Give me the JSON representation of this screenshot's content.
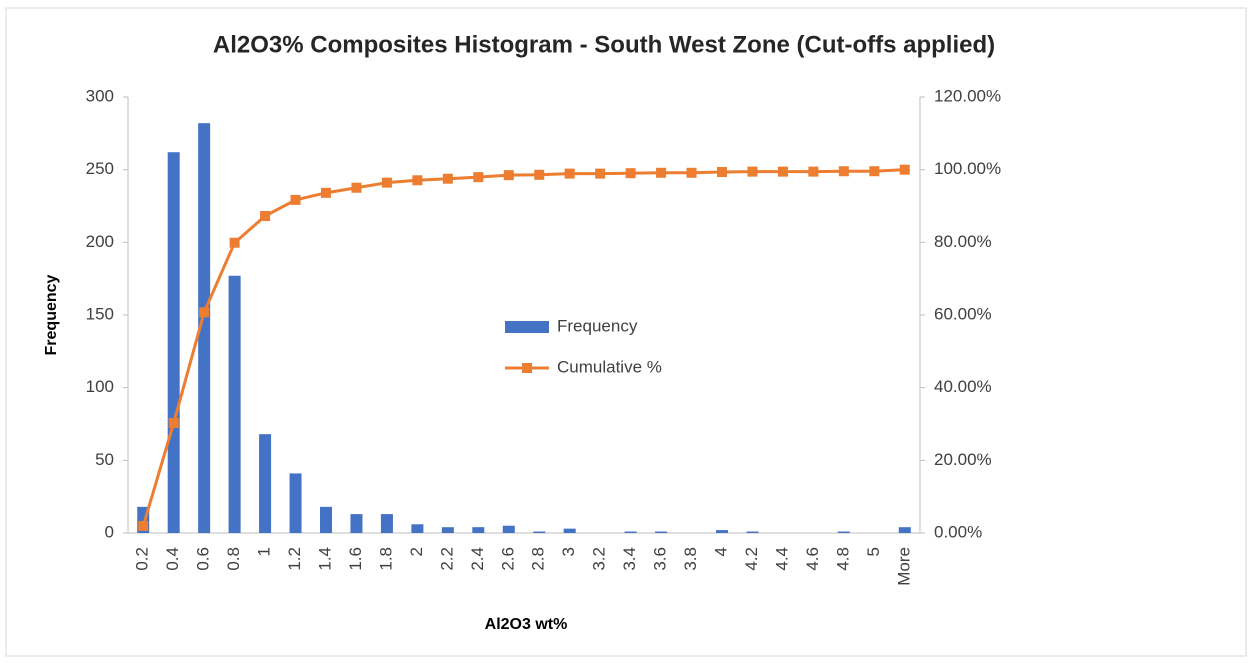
{
  "chart_data": {
    "type": "bar",
    "title": "Al2O3% Composites Histogram - South West Zone (Cut-offs applied)",
    "x_label": "Al2O3 wt%",
    "y_label": "Frequency",
    "categories": [
      "0.2",
      "0.4",
      "0.6",
      "0.8",
      "1",
      "1.2",
      "1.4",
      "1.6",
      "1.8",
      "2",
      "2.2",
      "2.4",
      "2.6",
      "2.8",
      "3",
      "3.2",
      "3.4",
      "3.6",
      "3.8",
      "4",
      "4.2",
      "4.4",
      "4.6",
      "4.8",
      "5",
      "More"
    ],
    "series": [
      {
        "name": "Frequency",
        "color": "#4472c4",
        "type": "bar",
        "values": [
          18,
          262,
          282,
          177,
          68,
          41,
          18,
          13,
          13,
          6,
          4,
          4,
          5,
          1,
          3,
          0,
          1,
          1,
          0,
          2,
          1,
          0,
          0,
          1,
          0,
          4
        ]
      },
      {
        "name": "Cumulative %",
        "color": "#ed7d31",
        "type": "line",
        "axis": "y2",
        "values": [
          1.95,
          30.27,
          60.76,
          79.89,
          87.24,
          91.68,
          93.62,
          95.03,
          96.43,
          97.08,
          97.51,
          97.95,
          98.49,
          98.59,
          98.92,
          98.92,
          99.03,
          99.14,
          99.14,
          99.35,
          99.46,
          99.46,
          99.46,
          99.57,
          99.57,
          100
        ]
      }
    ],
    "ylim": [
      0,
      300
    ],
    "yticks": [
      0,
      50,
      100,
      150,
      200,
      250,
      300
    ],
    "y2lim": [
      0,
      120
    ],
    "y2ticks": [
      {
        "value": 0,
        "label": "0.00%"
      },
      {
        "value": 20,
        "label": "20.00%"
      },
      {
        "value": 40,
        "label": "40.00%"
      },
      {
        "value": 60,
        "label": "60.00%"
      },
      {
        "value": 80,
        "label": "80.00%"
      },
      {
        "value": 100,
        "label": "100.00%"
      },
      {
        "value": 120,
        "label": "120.00%"
      }
    ],
    "grid": false,
    "legend": "center"
  }
}
